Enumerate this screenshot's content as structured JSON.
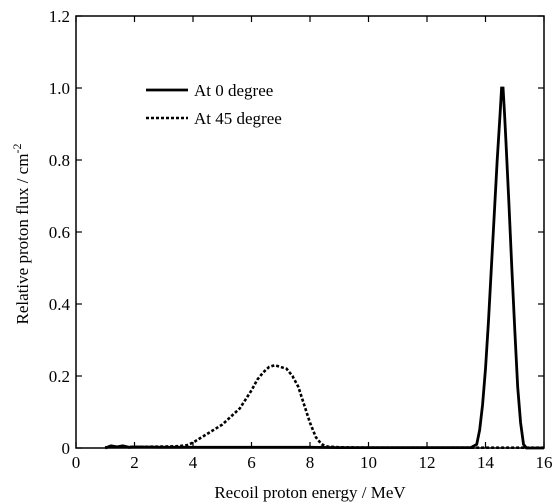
{
  "chart_data": {
    "type": "line",
    "title": "",
    "xlabel": "Recoil proton energy / MeV",
    "ylabel": "Relative proton flux / cm",
    "ylabel_superscript": "-2",
    "xlim": [
      0,
      16
    ],
    "ylim": [
      0,
      1.2
    ],
    "xticks": [
      0,
      2,
      4,
      6,
      8,
      10,
      12,
      14,
      16
    ],
    "xtick_labels": [
      "0",
      "2",
      "4",
      "6",
      "8",
      "10",
      "12",
      "14",
      "16"
    ],
    "yticks": [
      0,
      0.2,
      0.4,
      0.6,
      0.8,
      1.0,
      1.2
    ],
    "ytick_labels": [
      "0",
      "0.2",
      "0.4",
      "0.6",
      "0.8",
      "1.0",
      "1.2"
    ],
    "grid": false,
    "legend_position": "top-left",
    "series": [
      {
        "name": "At 0 degree",
        "style": "solid",
        "color": "#000000",
        "x": [
          1.0,
          1.2,
          1.4,
          1.6,
          1.8,
          2.0,
          3.0,
          4.0,
          5.0,
          6.0,
          7.0,
          8.0,
          9.0,
          10.0,
          11.0,
          12.0,
          13.0,
          13.5,
          13.7,
          13.8,
          13.9,
          14.0,
          14.1,
          14.2,
          14.3,
          14.4,
          14.5,
          14.55,
          14.6,
          14.65,
          14.7,
          14.8,
          14.9,
          15.0,
          15.1,
          15.2,
          15.3,
          15.4,
          16.0
        ],
        "y": [
          0.0,
          0.006,
          0.003,
          0.006,
          0.002,
          0.003,
          0.002,
          0.002,
          0.002,
          0.002,
          0.002,
          0.002,
          0.001,
          0.001,
          0.001,
          0.001,
          0.001,
          0.001,
          0.01,
          0.05,
          0.12,
          0.22,
          0.35,
          0.5,
          0.65,
          0.8,
          0.93,
          1.0,
          1.0,
          0.93,
          0.85,
          0.68,
          0.5,
          0.33,
          0.17,
          0.07,
          0.01,
          0.0,
          0.0
        ]
      },
      {
        "name": "At 45 degree",
        "style": "dashed",
        "color": "#000000",
        "x": [
          1.0,
          2.0,
          3.0,
          3.5,
          3.8,
          4.0,
          4.2,
          4.4,
          4.6,
          4.8,
          5.0,
          5.2,
          5.4,
          5.6,
          5.8,
          6.0,
          6.2,
          6.4,
          6.6,
          6.8,
          7.0,
          7.2,
          7.4,
          7.6,
          7.8,
          8.0,
          8.2,
          8.4,
          8.6,
          9.0,
          10.0,
          12.0,
          14.0,
          16.0
        ],
        "y": [
          0.002,
          0.003,
          0.004,
          0.005,
          0.008,
          0.015,
          0.025,
          0.035,
          0.045,
          0.055,
          0.065,
          0.08,
          0.095,
          0.11,
          0.135,
          0.16,
          0.19,
          0.21,
          0.225,
          0.23,
          0.225,
          0.22,
          0.2,
          0.17,
          0.12,
          0.07,
          0.03,
          0.01,
          0.004,
          0.002,
          0.001,
          0.001,
          0.001,
          0.001
        ]
      }
    ]
  }
}
